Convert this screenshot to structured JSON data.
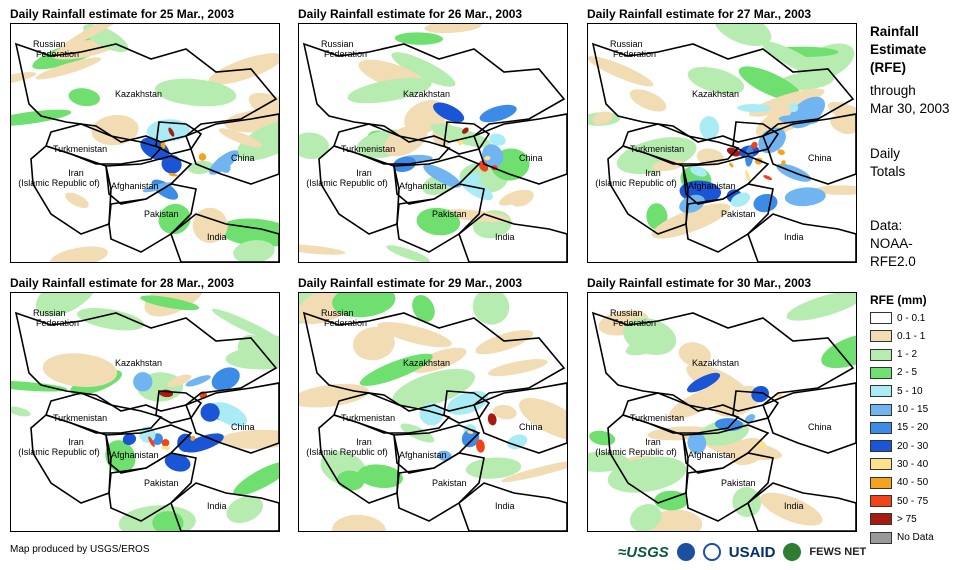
{
  "panels": [
    {
      "title": "Daily Rainfall estimate for 25 Mar., 2003",
      "rain_level": 0.35
    },
    {
      "title": "Daily Rainfall estimate for 26 Mar., 2003",
      "rain_level": 0.45
    },
    {
      "title": "Daily Rainfall estimate for 27 Mar., 2003",
      "rain_level": 0.8
    },
    {
      "title": "Daily Rainfall estimate for 28 Mar., 2003",
      "rain_level": 0.6
    },
    {
      "title": "Daily Rainfall estimate for 29 Mar., 2003",
      "rain_level": 0.3
    },
    {
      "title": "Daily Rainfall estimate for 30 Mar., 2003",
      "rain_level": 0.25
    }
  ],
  "map_labels": {
    "russia": "Russian",
    "russia2": "Federation",
    "kazakhstan": "Kazakhstan",
    "turkmenistan": "Turkmenistan",
    "china": "China",
    "iran": "Iran",
    "iran2": "(Islamic Republic of)",
    "afghanistan": "Afghanistan",
    "pakistan": "Pakistan",
    "india": "India"
  },
  "side": {
    "line1": "Rainfall",
    "line2": "Estimate",
    "line3": "(RFE)",
    "line4": "through",
    "line5": "Mar 30, 2003",
    "line6": "Daily",
    "line7": "Totals",
    "line8": "Data:",
    "line9": "NOAA-",
    "line10": "RFE2.0"
  },
  "legend": {
    "title": "RFE (mm)",
    "items": [
      {
        "label": "0 - 0.1",
        "color": "#ffffff"
      },
      {
        "label": "0.1 - 1",
        "color": "#f1dcb4"
      },
      {
        "label": "1 - 2",
        "color": "#b7ecb0"
      },
      {
        "label": "2 - 5",
        "color": "#6fe06f"
      },
      {
        "label": "5 - 10",
        "color": "#a9ecf6"
      },
      {
        "label": "10 - 15",
        "color": "#70b4f2"
      },
      {
        "label": "15 - 20",
        "color": "#3c8be6"
      },
      {
        "label": "20 - 30",
        "color": "#1a55d6"
      },
      {
        "label": "30 - 40",
        "color": "#fde28a"
      },
      {
        "label": "40 - 50",
        "color": "#f5a21e"
      },
      {
        "label": "50 - 75",
        "color": "#f2421a"
      },
      {
        "label": "> 75",
        "color": "#a61a10"
      },
      {
        "label": "No Data",
        "color": "#999999"
      }
    ]
  },
  "footer": {
    "credit": "Map produced by USGS/EROS"
  },
  "logos": {
    "usgs": "≈USGS",
    "usaid": "USAID",
    "fews": "FEWS NET"
  },
  "colors": {
    "noaa_blue": "#1c4fa0",
    "usaid_red": "#c8102e",
    "fews_green": "#2e7d32"
  }
}
